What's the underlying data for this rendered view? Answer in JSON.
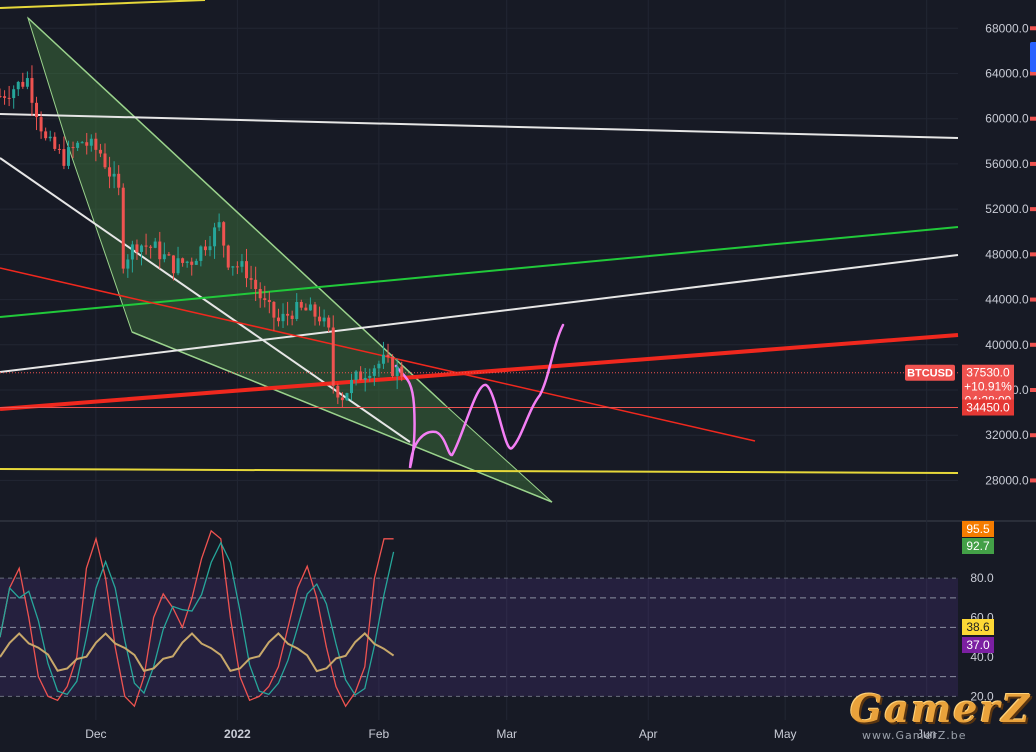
{
  "chart_data": [
    {
      "type": "candlestick",
      "symbol": "BTCUSD",
      "timeframe_range": "Nov 2021 - Feb 2022",
      "price_axis": {
        "ylim": [
          24500,
          70500
        ],
        "ticks": [
          "68000.0",
          "64000.0",
          "60000.0",
          "56000.0",
          "52000.0",
          "48000.0",
          "44000.0",
          "40000.0",
          "36000.0",
          "32000.0",
          "28000.0"
        ],
        "tick_values": [
          68000,
          64000,
          60000,
          56000,
          52000,
          48000,
          44000,
          40000,
          36000,
          32000,
          28000
        ]
      },
      "time_axis": {
        "labels": [
          "Dec",
          "2022",
          "Feb",
          "Mar",
          "Apr",
          "May",
          "Jun"
        ],
        "label_dates": [
          "2021-12-01",
          "2022-01-01",
          "2022-02-01",
          "2022-03-01",
          "2022-04-01",
          "2022-05-01",
          "2022-06-01"
        ]
      },
      "price_labels": {
        "symbol": "BTCUSD",
        "last_price": "37530.0",
        "change_pct": "+10.91%",
        "countdown": "04:28:09",
        "level": "34450.0"
      },
      "levels": {
        "last": 37530,
        "marked": 34450
      },
      "colors": {
        "up": "#26a69a",
        "down": "#ef5350",
        "channel_fill": "#3b6b3a",
        "channel_line": "#9ad28c",
        "white_line": "#e6e6e6",
        "green_line": "#21c93a",
        "red_line": "#f0281e",
        "yellow_line": "#e6d83a",
        "projection": "#f47ff5"
      }
    },
    {
      "type": "line",
      "indicator": "oscillator",
      "ylim": [
        8,
        108
      ],
      "ticks": [
        "80.0",
        "60.0",
        "40.0",
        "20.0"
      ],
      "tick_values": [
        80,
        60,
        40,
        20
      ],
      "last_values": [
        "95.5",
        "92.7",
        "38.6",
        "37.0"
      ],
      "last_colors": [
        "#f57c00",
        "#43a047",
        "#fdd835",
        "#7b1fa2"
      ],
      "band": [
        80,
        20
      ],
      "dashed_levels": [
        70,
        55,
        30
      ],
      "series": [
        {
          "color": "#ef5350"
        },
        {
          "color": "#26a69a"
        },
        {
          "color": "#c8a86a"
        }
      ]
    }
  ],
  "watermark": {
    "text": "GamerZ",
    "sub": "www.GamerZ.be"
  }
}
